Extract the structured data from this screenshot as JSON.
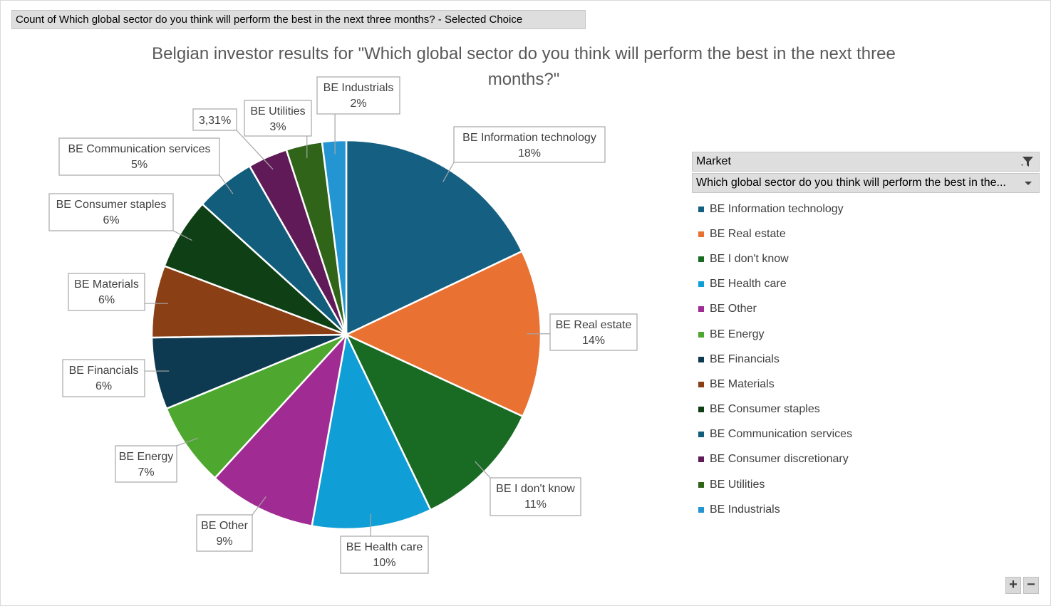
{
  "field_button": {
    "label": "Count of Which global sector do you think will perform the best in the next three months? - Selected  Choice"
  },
  "legend": {
    "filter_header": "Market",
    "series_header": "Which global sector  do you think will perform the best in the...",
    "items": [
      {
        "label": "BE Information technology",
        "color": "#156082"
      },
      {
        "label": "BE Real estate",
        "color": "#e97132"
      },
      {
        "label": "BE I don't know",
        "color": "#196b24"
      },
      {
        "label": "BE Health care",
        "color": "#0f9ed5"
      },
      {
        "label": "BE Other",
        "color": "#a02b93"
      },
      {
        "label": "BE Energy",
        "color": "#4ea72e"
      },
      {
        "label": "BE Financials",
        "color": "#0d3a51"
      },
      {
        "label": "BE Materials",
        "color": "#8b3f15"
      },
      {
        "label": "BE Consumer staples",
        "color": "#0f4015"
      },
      {
        "label": "BE Communication services",
        "color": "#125c7c"
      },
      {
        "label": "BE Consumer discretionary",
        "color": "#601a58"
      },
      {
        "label": "BE Utilities",
        "color": "#2f6419"
      },
      {
        "label": "BE Industrials",
        "color": "#2395d2"
      }
    ]
  },
  "zoom": {
    "plus": "+",
    "minus": "−"
  },
  "chart_data": {
    "type": "pie",
    "title": "Belgian investor results for \"Which global sector do you think will perform the best in the next three months?\"",
    "title_lines": [
      "Belgian investor results for \"Which global sector do you think will perform the best in the next three",
      "months?\""
    ],
    "legend_position": "right",
    "slices": [
      {
        "name": "BE Information technology",
        "value": 18,
        "label": "18%",
        "color": "#156082"
      },
      {
        "name": "BE Real estate",
        "value": 14,
        "label": "14%",
        "color": "#e97132"
      },
      {
        "name": "BE I don't know",
        "value": 11,
        "label": "11%",
        "color": "#196b24"
      },
      {
        "name": "BE Health care",
        "value": 10,
        "label": "10%",
        "color": "#0f9ed5"
      },
      {
        "name": "BE Other",
        "value": 9,
        "label": "9%",
        "color": "#a02b93"
      },
      {
        "name": "BE Energy",
        "value": 7,
        "label": "7%",
        "color": "#4ea72e"
      },
      {
        "name": "BE Financials",
        "value": 6,
        "label": "6%",
        "color": "#0d3a51"
      },
      {
        "name": "BE Materials",
        "value": 6,
        "label": "6%",
        "color": "#8b3f15"
      },
      {
        "name": "BE Consumer staples",
        "value": 6,
        "label": "6%",
        "color": "#0f4015"
      },
      {
        "name": "BE Communication services",
        "value": 5,
        "label": "5%",
        "color": "#125c7c"
      },
      {
        "name": "BE Consumer discretionary",
        "value": 3.31,
        "label": "3,31%",
        "color": "#601a58"
      },
      {
        "name": "BE Utilities",
        "value": 3,
        "label": "3%",
        "color": "#2f6419"
      },
      {
        "name": "BE Industrials",
        "value": 2,
        "label": "2%",
        "color": "#2395d2"
      }
    ]
  }
}
